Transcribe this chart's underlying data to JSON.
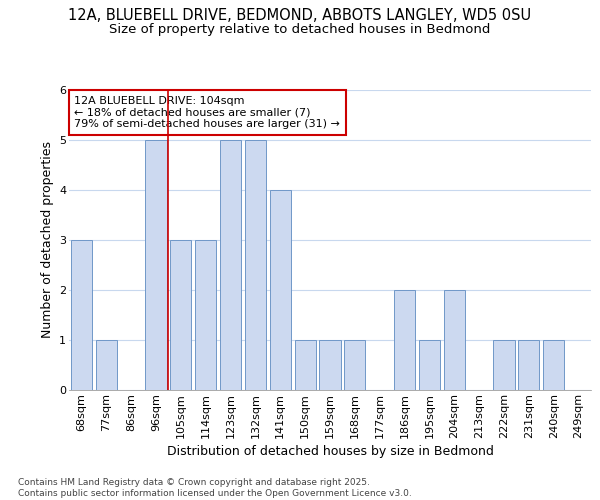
{
  "title_line1": "12A, BLUEBELL DRIVE, BEDMOND, ABBOTS LANGLEY, WD5 0SU",
  "title_line2": "Size of property relative to detached houses in Bedmond",
  "xlabel": "Distribution of detached houses by size in Bedmond",
  "ylabel": "Number of detached properties",
  "categories": [
    "68sqm",
    "77sqm",
    "86sqm",
    "96sqm",
    "105sqm",
    "114sqm",
    "123sqm",
    "132sqm",
    "141sqm",
    "150sqm",
    "159sqm",
    "168sqm",
    "177sqm",
    "186sqm",
    "195sqm",
    "204sqm",
    "213sqm",
    "222sqm",
    "231sqm",
    "240sqm",
    "249sqm"
  ],
  "values": [
    3,
    1,
    0,
    5,
    3,
    3,
    5,
    5,
    4,
    1,
    1,
    1,
    0,
    2,
    1,
    2,
    0,
    1,
    1,
    1,
    0
  ],
  "bar_color": "#ccd9f0",
  "bar_edge_color": "#7098c8",
  "red_line_color": "#cc0000",
  "red_line_x": 3.5,
  "annotation_text": "12A BLUEBELL DRIVE: 104sqm\n← 18% of detached houses are smaller (7)\n79% of semi-detached houses are larger (31) →",
  "annotation_box_color": "#ffffff",
  "annotation_box_edge_color": "#cc0000",
  "ylim": [
    0,
    6
  ],
  "yticks": [
    0,
    1,
    2,
    3,
    4,
    5,
    6
  ],
  "footer_text": "Contains HM Land Registry data © Crown copyright and database right 2025.\nContains public sector information licensed under the Open Government Licence v3.0.",
  "bg_color": "#ffffff",
  "plot_bg_color": "#ffffff",
  "grid_color": "#c8d8ee",
  "title_fontsize": 10.5,
  "subtitle_fontsize": 9.5,
  "label_fontsize": 9,
  "tick_fontsize": 8,
  "annotation_fontsize": 8,
  "footer_fontsize": 6.5
}
